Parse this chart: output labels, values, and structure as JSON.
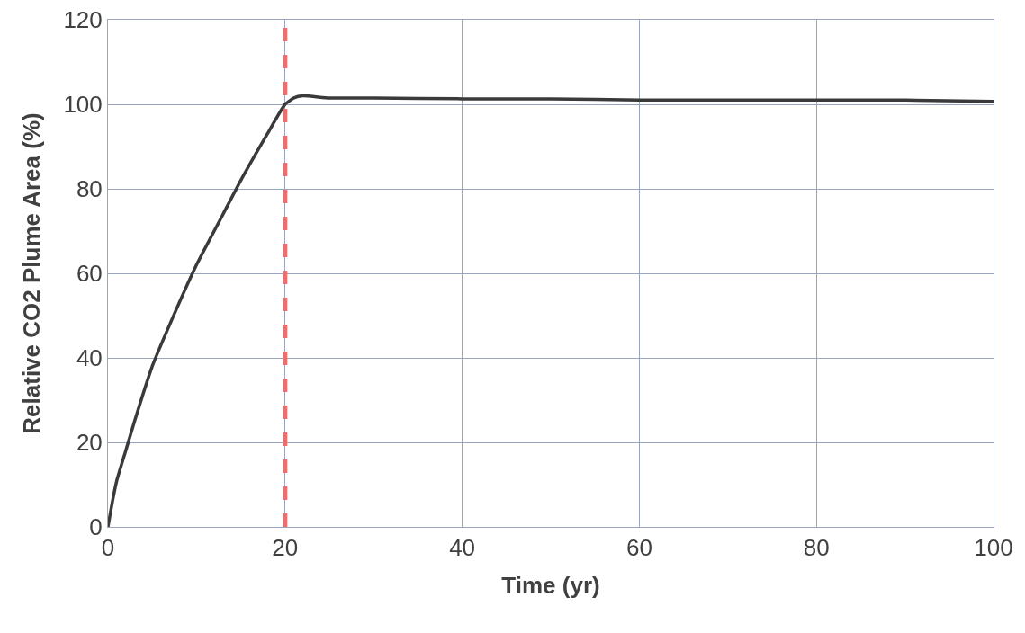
{
  "chart_data": {
    "type": "line",
    "xlabel": "Time (yr)",
    "ylabel": "Relative CO2 Plume Area (%)",
    "x": [
      0,
      0.5,
      1,
      2,
      3,
      5,
      7,
      10,
      13,
      15,
      18,
      20,
      21,
      22,
      25,
      30,
      40,
      50,
      60,
      70,
      80,
      90,
      100
    ],
    "series": [
      {
        "color": "#3a3a3a",
        "values": [
          0,
          6,
          11,
          18,
          25,
          38,
          48,
          62,
          74,
          82,
          93,
          100,
          101.5,
          102,
          101.5,
          101.5,
          101.3,
          101.3,
          101,
          101,
          101,
          101,
          100.7
        ]
      }
    ],
    "xlim": [
      0,
      100
    ],
    "xticks": [
      0,
      20,
      40,
      60,
      80,
      100
    ],
    "ylim": [
      0,
      120
    ],
    "yticks": [
      0,
      20,
      40,
      60,
      80,
      100,
      120
    ],
    "grid": true,
    "marker": "none",
    "line_style": "solid",
    "ref_lines": [
      {
        "axis": "x",
        "value": 20,
        "color": "#e87070",
        "line_style": "dashed"
      }
    ]
  }
}
